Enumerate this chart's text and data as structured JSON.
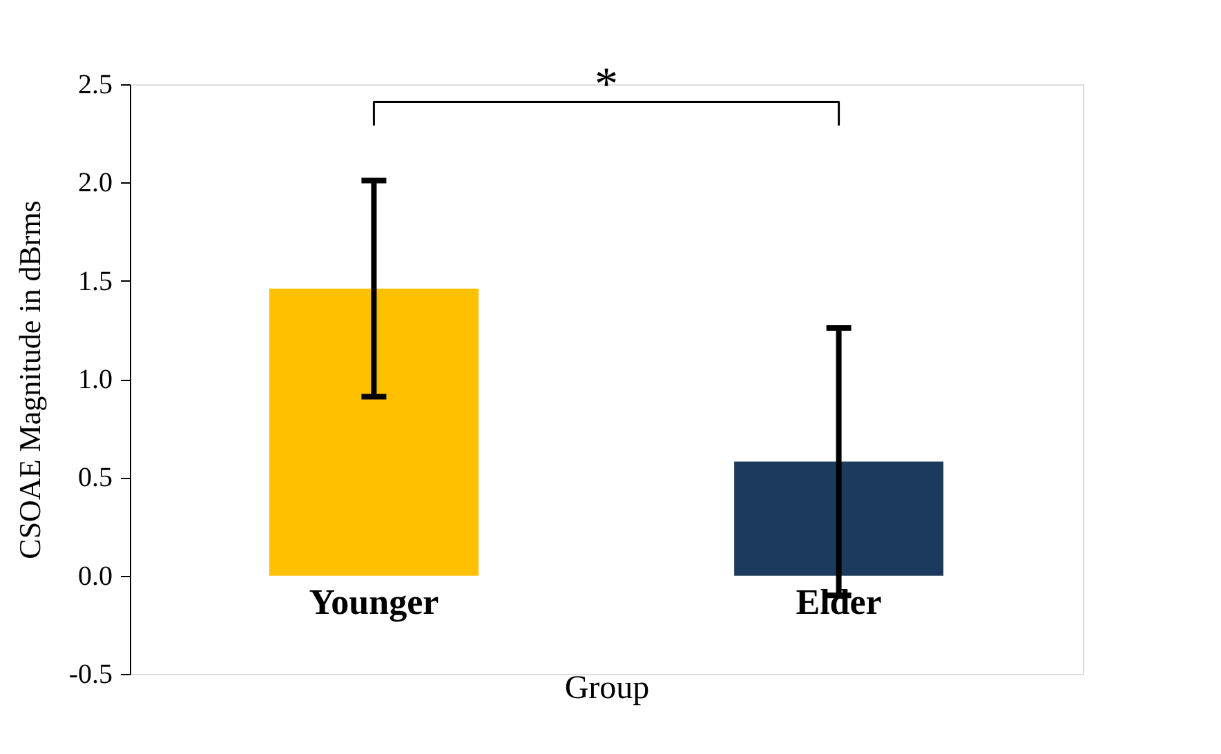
{
  "chart_data": {
    "type": "bar",
    "categories": [
      "Younger",
      "Elder"
    ],
    "colors": [
      "#ffc000",
      "#1b3a5e"
    ],
    "values": [
      1.46,
      0.58
    ],
    "errors": [
      0.55,
      0.68
    ],
    "xlabel": "Group",
    "ylabel": "CSOAE Magnitude in dBrms",
    "ylim": [
      -0.5,
      2.5
    ],
    "yticks": [
      {
        "value": -0.5,
        "label": "-0.5"
      },
      {
        "value": 0,
        "label": "0.0"
      },
      {
        "value": 0.5,
        "label": "0.5"
      },
      {
        "value": 1,
        "label": "1.0"
      },
      {
        "value": 1.5,
        "label": "1.5"
      },
      {
        "value": 2,
        "label": "2.0"
      },
      {
        "value": 2.5,
        "label": "2.5"
      }
    ],
    "annotations": [
      "*"
    ],
    "grid": false
  }
}
